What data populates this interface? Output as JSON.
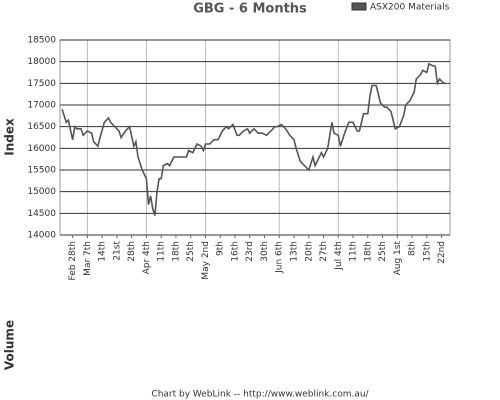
{
  "chart_data": {
    "type": "line",
    "title": "GBG - 6 Months",
    "ylabel": "Index",
    "volume_label": "Volume",
    "credit": "Chart by WebLink -- http://www.weblink.com.au/",
    "xlim": [
      -6,
      179
    ],
    "ylim": [
      14000,
      18500
    ],
    "yticks": [
      14000,
      14500,
      15000,
      15500,
      16000,
      16500,
      17000,
      17500,
      18000,
      18500
    ],
    "xticks": [
      {
        "value": 0,
        "label": "Feb 28th"
      },
      {
        "value": 7,
        "label": "Mar 7th"
      },
      {
        "value": 14,
        "label": "14th"
      },
      {
        "value": 21,
        "label": "21st"
      },
      {
        "value": 28,
        "label": "28th"
      },
      {
        "value": 35,
        "label": "Apr 4th"
      },
      {
        "value": 42,
        "label": "11th"
      },
      {
        "value": 49,
        "label": "18th"
      },
      {
        "value": 56,
        "label": "25th"
      },
      {
        "value": 63,
        "label": "May 2nd"
      },
      {
        "value": 70,
        "label": "9th"
      },
      {
        "value": 77,
        "label": "16th"
      },
      {
        "value": 84,
        "label": "23rd"
      },
      {
        "value": 91,
        "label": "30th"
      },
      {
        "value": 98,
        "label": "Jun 6th"
      },
      {
        "value": 105,
        "label": "13th"
      },
      {
        "value": 112,
        "label": "20th"
      },
      {
        "value": 119,
        "label": "27th"
      },
      {
        "value": 126,
        "label": "Jul 4th"
      },
      {
        "value": 133,
        "label": "11th"
      },
      {
        "value": 140,
        "label": "18th"
      },
      {
        "value": 147,
        "label": "25th"
      },
      {
        "value": 154,
        "label": "Aug 1st"
      },
      {
        "value": 161,
        "label": "8th"
      },
      {
        "value": 168,
        "label": "15th"
      },
      {
        "value": 175,
        "label": "22nd"
      }
    ],
    "x_gridlines": [
      7,
      35,
      63,
      98,
      126,
      154
    ],
    "grid": true,
    "series": [
      {
        "name": "ASX200 Materials",
        "color": "#555555",
        "x": [
          -5,
          -3,
          -2,
          0,
          1,
          2,
          4,
          5,
          7,
          9,
          10,
          12,
          13,
          15,
          17,
          18,
          20,
          22,
          23,
          25,
          27,
          29,
          30,
          31,
          33,
          35,
          36,
          37,
          38,
          39,
          40,
          41,
          42,
          43,
          45,
          46,
          48,
          50,
          52,
          54,
          55,
          57,
          59,
          61,
          62,
          63,
          65,
          67,
          69,
          71,
          73,
          74,
          76,
          78,
          79,
          81,
          83,
          84,
          86,
          88,
          90,
          92,
          94,
          96,
          97,
          99,
          101,
          103,
          105,
          106,
          108,
          110,
          112,
          114,
          115,
          116,
          118,
          119,
          121,
          123,
          124,
          126,
          127,
          129,
          131,
          133,
          135,
          136,
          138,
          140,
          141,
          142,
          144,
          146,
          148,
          149,
          151,
          153,
          155,
          157,
          158,
          160,
          162,
          163,
          165,
          166,
          168,
          169,
          171,
          172,
          173,
          174,
          176,
          177
        ],
        "values": [
          16900,
          16600,
          16650,
          16200,
          16500,
          16450,
          16450,
          16300,
          16400,
          16350,
          16150,
          16050,
          16250,
          16600,
          16700,
          16600,
          16500,
          16400,
          16250,
          16400,
          16500,
          16050,
          16150,
          15800,
          15500,
          15300,
          14700,
          14900,
          14600,
          14450,
          15000,
          15300,
          15300,
          15600,
          15650,
          15600,
          15800,
          15800,
          15800,
          15800,
          15950,
          15900,
          16100,
          16050,
          15950,
          16100,
          16100,
          16200,
          16200,
          16400,
          16500,
          16450,
          16550,
          16300,
          16300,
          16400,
          16450,
          16350,
          16450,
          16350,
          16350,
          16300,
          16400,
          16500,
          16500,
          16550,
          16450,
          16300,
          16200,
          16000,
          15700,
          15600,
          15500,
          15800,
          15600,
          15700,
          15900,
          15800,
          16000,
          16600,
          16350,
          16300,
          16050,
          16350,
          16600,
          16600,
          16400,
          16400,
          16800,
          16800,
          17200,
          17450,
          17450,
          17050,
          16950,
          16950,
          16850,
          16450,
          16500,
          16750,
          17000,
          17100,
          17300,
          17600,
          17700,
          17800,
          17750,
          17950,
          17900,
          17900,
          17500,
          17600,
          17500,
          17500
        ]
      }
    ]
  }
}
